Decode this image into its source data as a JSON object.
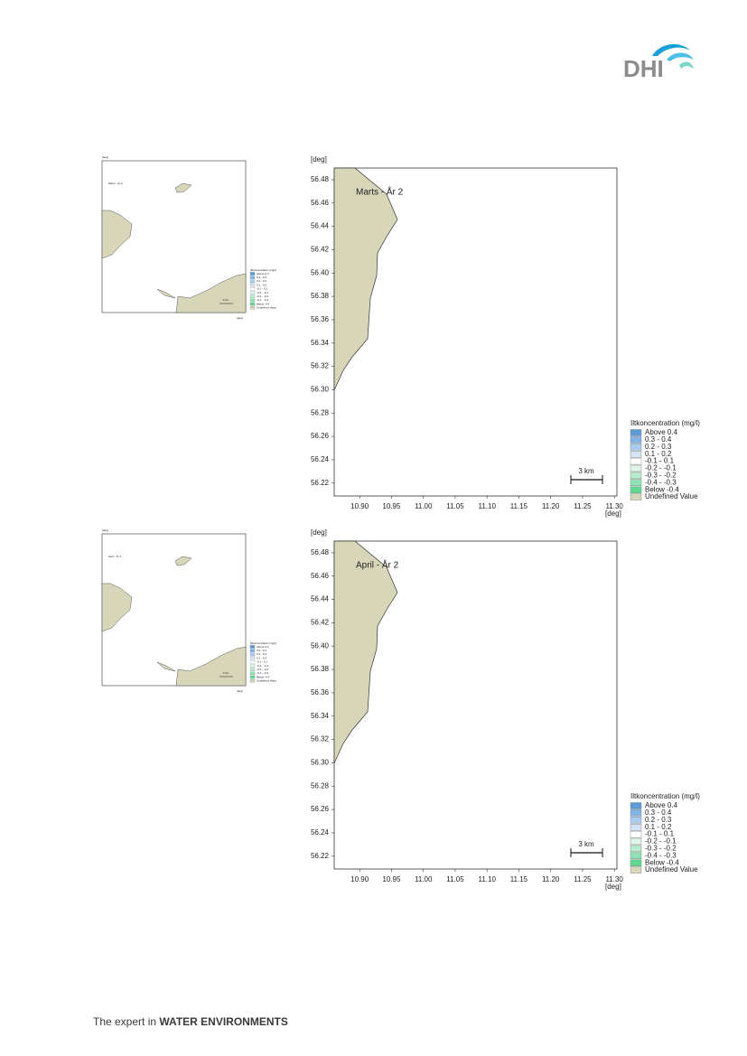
{
  "header": {
    "logo": "DHI"
  },
  "figures": [
    {
      "title": "Marts - År 2",
      "y_unit": "[deg]",
      "x_unit": "[deg]",
      "xlim": [
        10.86,
        11.304
      ],
      "ylim": [
        56.209,
        56.49
      ],
      "xticks": [
        {
          "value": 10.9,
          "label": "10.90"
        },
        {
          "value": 10.95,
          "label": "10.95"
        },
        {
          "value": 11.0,
          "label": "11.00"
        },
        {
          "value": 11.05,
          "label": "11.05"
        },
        {
          "value": 11.1,
          "label": "11.10"
        },
        {
          "value": 11.15,
          "label": "11.15"
        },
        {
          "value": 11.2,
          "label": "11.20"
        },
        {
          "value": 11.25,
          "label": "11.25"
        },
        {
          "value": 11.3,
          "label": "11.30"
        }
      ],
      "yticks": [
        {
          "value": 56.22,
          "label": "56.22"
        },
        {
          "value": 56.24,
          "label": "56.24"
        },
        {
          "value": 56.26,
          "label": "56.26"
        },
        {
          "value": 56.28,
          "label": "56.28"
        },
        {
          "value": 56.3,
          "label": "56.30"
        },
        {
          "value": 56.32,
          "label": "56.32"
        },
        {
          "value": 56.34,
          "label": "56.34"
        },
        {
          "value": 56.36,
          "label": "56.36"
        },
        {
          "value": 56.38,
          "label": "56.38"
        },
        {
          "value": 56.4,
          "label": "56.40"
        },
        {
          "value": 56.42,
          "label": "56.42"
        },
        {
          "value": 56.44,
          "label": "56.44"
        },
        {
          "value": 56.46,
          "label": "56.46"
        },
        {
          "value": 56.48,
          "label": "56.48"
        }
      ],
      "scale_label": "3 km",
      "legend_title": "Iltkoncentration (mg/l)",
      "legend": [
        {
          "label": "Above  0.4",
          "color": "#5b9bd5"
        },
        {
          "label": "0.3 -  0.4",
          "color": "#80b3e6"
        },
        {
          "label": "0.2 -  0.3",
          "color": "#a9ccef"
        },
        {
          "label": "0.1 -  0.2",
          "color": "#d4e4f7"
        },
        {
          "label": "-0.1 -  0.1",
          "color": "#ffffff"
        },
        {
          "label": "-0.2 - -0.1",
          "color": "#e0f5e9"
        },
        {
          "label": "-0.3 - -0.2",
          "color": "#b8ecd0"
        },
        {
          "label": "-0.4 - -0.3",
          "color": "#8ee3b5"
        },
        {
          "label": "Below -0.4",
          "color": "#5fd98f"
        },
        {
          "label": "Undefined Value",
          "color": "#d8d6b8"
        }
      ]
    },
    {
      "title": "April - År 2",
      "y_unit": "[deg]",
      "x_unit": "[deg]",
      "xlim": [
        10.86,
        11.304
      ],
      "ylim": [
        56.209,
        56.49
      ],
      "xticks": [
        {
          "value": 10.9,
          "label": "10.90"
        },
        {
          "value": 10.95,
          "label": "10.95"
        },
        {
          "value": 11.0,
          "label": "11.00"
        },
        {
          "value": 11.05,
          "label": "11.05"
        },
        {
          "value": 11.1,
          "label": "11.10"
        },
        {
          "value": 11.15,
          "label": "11.15"
        },
        {
          "value": 11.2,
          "label": "11.20"
        },
        {
          "value": 11.25,
          "label": "11.25"
        },
        {
          "value": 11.3,
          "label": "11.30"
        }
      ],
      "yticks": [
        {
          "value": 56.22,
          "label": "56.22"
        },
        {
          "value": 56.24,
          "label": "56.24"
        },
        {
          "value": 56.26,
          "label": "56.26"
        },
        {
          "value": 56.28,
          "label": "56.28"
        },
        {
          "value": 56.3,
          "label": "56.30"
        },
        {
          "value": 56.32,
          "label": "56.32"
        },
        {
          "value": 56.34,
          "label": "56.34"
        },
        {
          "value": 56.36,
          "label": "56.36"
        },
        {
          "value": 56.38,
          "label": "56.38"
        },
        {
          "value": 56.4,
          "label": "56.40"
        },
        {
          "value": 56.42,
          "label": "56.42"
        },
        {
          "value": 56.44,
          "label": "56.44"
        },
        {
          "value": 56.46,
          "label": "56.46"
        },
        {
          "value": 56.48,
          "label": "56.48"
        }
      ],
      "scale_label": "3 km",
      "legend_title": "Iltkoncentration (mg/l)",
      "legend": [
        {
          "label": "Above  0.4",
          "color": "#5b9bd5"
        },
        {
          "label": "0.3 -  0.4",
          "color": "#80b3e6"
        },
        {
          "label": "0.2 -  0.3",
          "color": "#a9ccef"
        },
        {
          "label": "0.1 -  0.2",
          "color": "#d4e4f7"
        },
        {
          "label": "-0.1 -  0.1",
          "color": "#ffffff"
        },
        {
          "label": "-0.2 - -0.1",
          "color": "#e0f5e9"
        },
        {
          "label": "-0.3 - -0.2",
          "color": "#b8ecd0"
        },
        {
          "label": "-0.4 - -0.3",
          "color": "#8ee3b5"
        },
        {
          "label": "Below -0.4",
          "color": "#5fd98f"
        },
        {
          "label": "Undefined Value",
          "color": "#d8d6b8"
        }
      ]
    }
  ],
  "footer": {
    "lead": "The expert in ",
    "emphasis": "WATER ENVIRONMENTS"
  }
}
